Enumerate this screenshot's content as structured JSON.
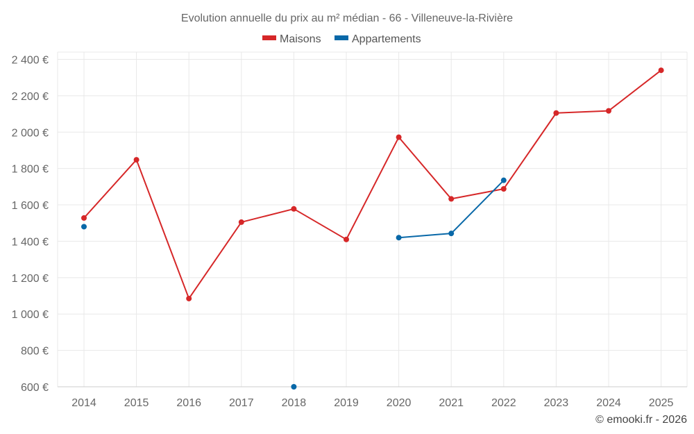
{
  "chart_data": {
    "type": "line",
    "title": "Evolution annuelle du prix au m² médian - 66 - Villeneuve-la-Rivière",
    "x": [
      "2014",
      "2015",
      "2016",
      "2017",
      "2018",
      "2019",
      "2020",
      "2021",
      "2022",
      "2023",
      "2024",
      "2025"
    ],
    "ylim": [
      600,
      2440
    ],
    "yticks": [
      600,
      800,
      1000,
      1200,
      1400,
      1600,
      1800,
      2000,
      2200,
      2400
    ],
    "ytick_labels": [
      "600 €",
      "800 €",
      "1 000 €",
      "1 200 €",
      "1 400 €",
      "1 600 €",
      "1 800 €",
      "2 000 €",
      "2 200 €",
      "2 400 €"
    ],
    "grid": true,
    "legend_position": "top-center",
    "series": [
      {
        "name": "Maisons",
        "color": "#d62728",
        "values": [
          1528,
          1848,
          1085,
          1505,
          1578,
          1410,
          1972,
          1633,
          1688,
          2105,
          2117,
          2340
        ]
      },
      {
        "name": "Appartements",
        "color": "#0868a8",
        "values": [
          1480,
          null,
          null,
          null,
          600,
          null,
          1420,
          1443,
          1735,
          null,
          null,
          null
        ]
      }
    ]
  },
  "credit": "© emooki.fr - 2026"
}
